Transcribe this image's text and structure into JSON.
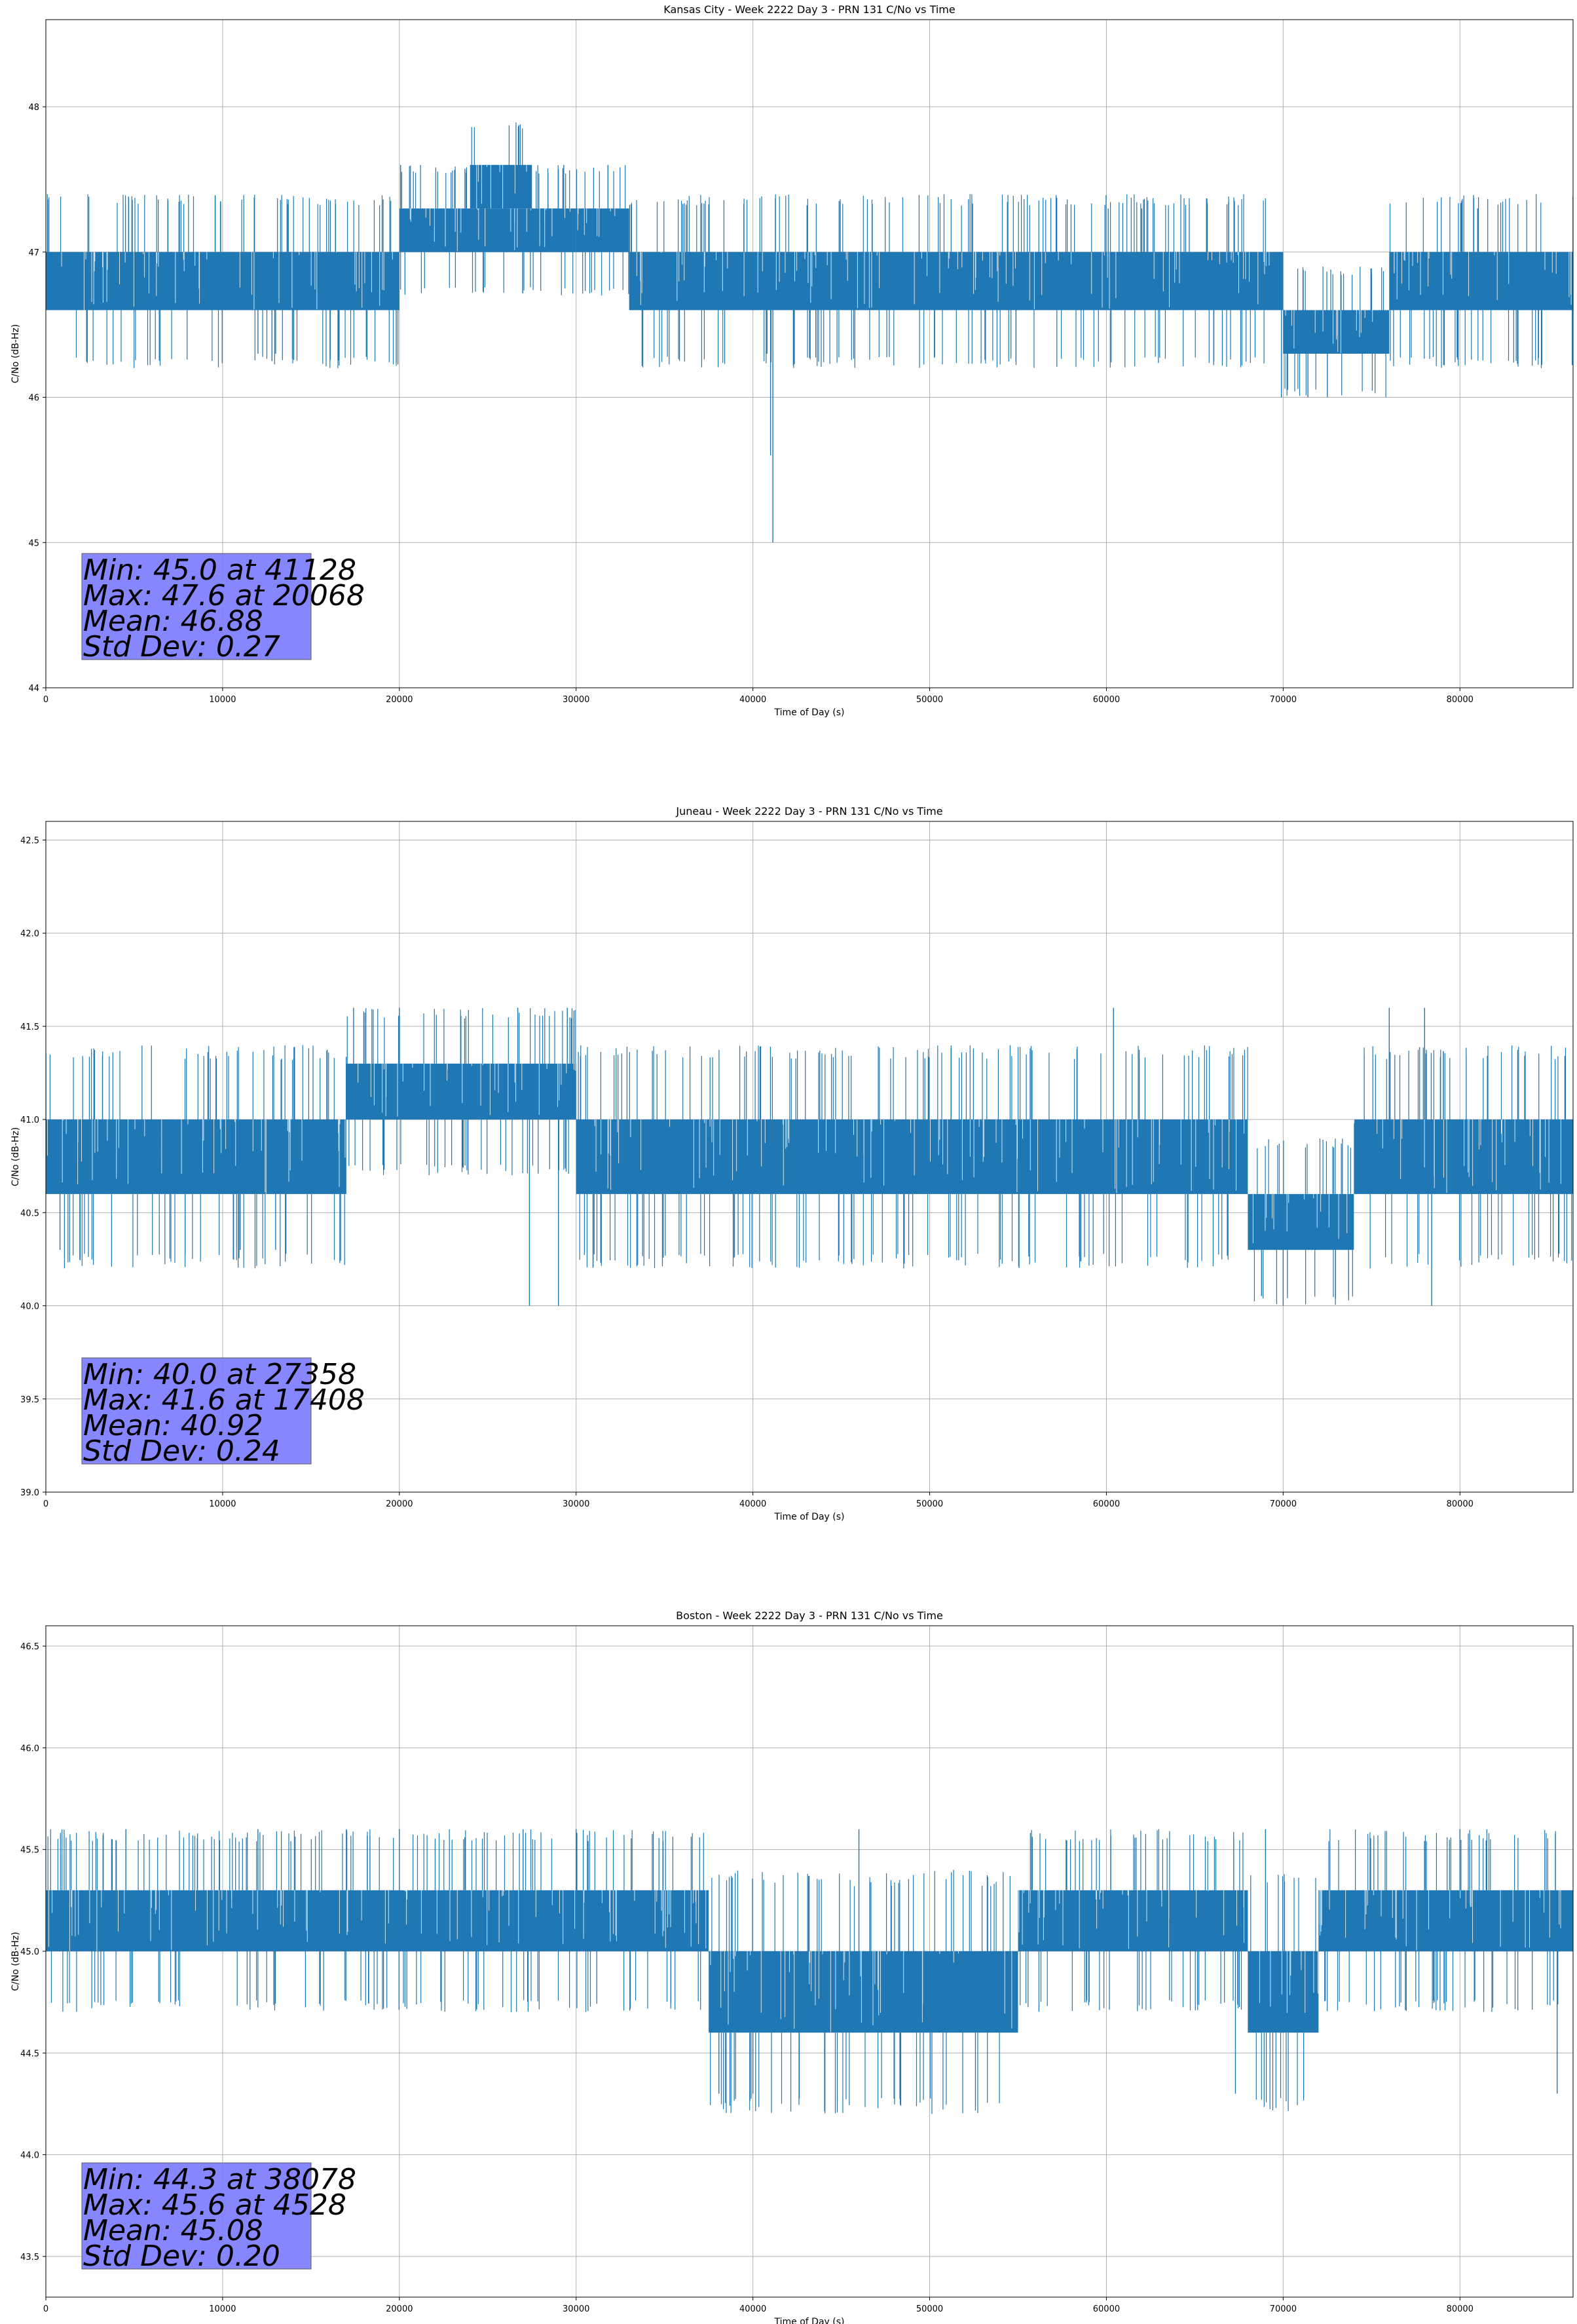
{
  "figure": {
    "background": "#ffffff",
    "line_color": "#1f77b4",
    "box_color": "#8080ff"
  },
  "chart_data": [
    {
      "type": "line",
      "title": "Kansas City - Week 2222 Day 3 - PRN 131 C/No vs Time",
      "xlabel": "Time of Day (s)",
      "ylabel": "C/No (dB-Hz)",
      "xlim": [
        0,
        86400
      ],
      "ylim": [
        44,
        48.6
      ],
      "xticks": [
        0,
        10000,
        20000,
        30000,
        40000,
        50000,
        60000,
        70000,
        80000
      ],
      "yticks": [
        44,
        45,
        46,
        47,
        48
      ],
      "grid": true,
      "series": [
        {
          "band": [
            {
              "x": [
                0,
                20000
              ],
              "y": [
                46.6,
                47.0
              ]
            },
            {
              "x": [
                20000,
                30000
              ],
              "y": [
                47.0,
                47.3
              ]
            },
            {
              "x": [
                24000,
                27500
              ],
              "y": [
                47.3,
                47.6
              ]
            },
            {
              "x": [
                30000,
                33000
              ],
              "y": [
                47.0,
                47.3
              ]
            },
            {
              "x": [
                33000,
                70000
              ],
              "y": [
                46.6,
                47.0
              ]
            },
            {
              "x": [
                70000,
                76000
              ],
              "y": [
                46.3,
                46.6
              ]
            },
            {
              "x": [
                76000,
                86400
              ],
              "y": [
                46.6,
                47.0
              ]
            }
          ],
          "spikes": [
            {
              "x": 41128,
              "y": 45.0
            },
            {
              "x": 41000,
              "y": 45.6
            },
            {
              "x": 40800,
              "y": 46.3
            },
            {
              "x": 20068,
              "y": 47.6
            },
            {
              "x": 69900,
              "y": 46.0
            },
            {
              "x": 71400,
              "y": 46.0
            },
            {
              "x": 72500,
              "y": 46.0
            },
            {
              "x": 13000,
              "y": 46.3
            },
            {
              "x": 12000,
              "y": 46.3
            },
            {
              "x": 31800,
              "y": 47.6
            },
            {
              "x": 29300,
              "y": 47.6
            },
            {
              "x": 60100,
              "y": 47.3
            },
            {
              "x": 62000,
              "y": 47.3
            },
            {
              "x": 81000,
              "y": 47.3
            }
          ]
        }
      ],
      "stats": {
        "line1": "Min: 45.0 at 41128",
        "line2": "Max: 47.6 at 20068",
        "line3": "Mean: 46.88",
        "line4": "Std Dev: 0.27"
      }
    },
    {
      "type": "line",
      "title": "Juneau - Week 2222 Day 3 - PRN 131 C/No vs Time",
      "xlabel": "Time of Day (s)",
      "ylabel": "C/No (dB-Hz)",
      "xlim": [
        0,
        86400
      ],
      "ylim": [
        39.0,
        42.6
      ],
      "xticks": [
        0,
        10000,
        20000,
        30000,
        40000,
        50000,
        60000,
        70000,
        80000
      ],
      "yticks": [
        39.0,
        39.5,
        40.0,
        40.5,
        41.0,
        41.5,
        42.0,
        42.5
      ],
      "grid": true,
      "series": [
        {
          "band": [
            {
              "x": [
                0,
                17000
              ],
              "y": [
                40.6,
                41.0
              ]
            },
            {
              "x": [
                17000,
                30000
              ],
              "y": [
                41.0,
                41.3
              ]
            },
            {
              "x": [
                30000,
                68000
              ],
              "y": [
                40.6,
                41.0
              ]
            },
            {
              "x": [
                68000,
                74000
              ],
              "y": [
                40.3,
                40.6
              ]
            },
            {
              "x": [
                74000,
                86400
              ],
              "y": [
                40.6,
                41.0
              ]
            }
          ],
          "spikes": [
            {
              "x": 27358,
              "y": 40.0
            },
            {
              "x": 29000,
              "y": 40.0
            },
            {
              "x": 70000,
              "y": 40.0
            },
            {
              "x": 78400,
              "y": 40.0
            },
            {
              "x": 17408,
              "y": 41.6
            },
            {
              "x": 20000,
              "y": 41.6
            },
            {
              "x": 26700,
              "y": 41.6
            },
            {
              "x": 29500,
              "y": 41.6
            },
            {
              "x": 60400,
              "y": 41.6
            },
            {
              "x": 76000,
              "y": 41.6
            },
            {
              "x": 78000,
              "y": 41.6
            },
            {
              "x": 800,
              "y": 40.3
            },
            {
              "x": 11000,
              "y": 40.3
            },
            {
              "x": 13000,
              "y": 40.3
            }
          ]
        }
      ],
      "stats": {
        "line1": "Min: 40.0 at 27358",
        "line2": "Max: 41.6 at 17408",
        "line3": "Mean: 40.92",
        "line4": "Std Dev: 0.24"
      }
    },
    {
      "type": "line",
      "title": "Boston - Week 2222 Day 3 - PRN 131 C/No vs Time",
      "xlabel": "Time of Day (s)",
      "ylabel": "C/No (dB-Hz)",
      "xlim": [
        0,
        86400
      ],
      "ylim": [
        43.3,
        46.6
      ],
      "xticks": [
        0,
        10000,
        20000,
        30000,
        40000,
        50000,
        60000,
        70000,
        80000
      ],
      "yticks": [
        43.5,
        44.0,
        44.5,
        45.0,
        45.5,
        46.0,
        46.5
      ],
      "grid": true,
      "series": [
        {
          "band": [
            {
              "x": [
                0,
                37500
              ],
              "y": [
                45.0,
                45.3
              ]
            },
            {
              "x": [
                37500,
                55000
              ],
              "y": [
                44.6,
                45.0
              ]
            },
            {
              "x": [
                55000,
                68000
              ],
              "y": [
                45.0,
                45.3
              ]
            },
            {
              "x": [
                68000,
                72000
              ],
              "y": [
                44.6,
                45.0
              ]
            },
            {
              "x": [
                72000,
                86400
              ],
              "y": [
                45.0,
                45.3
              ]
            }
          ],
          "spikes": [
            {
              "x": 38078,
              "y": 44.3
            },
            {
              "x": 40000,
              "y": 44.3
            },
            {
              "x": 67300,
              "y": 44.3
            },
            {
              "x": 85500,
              "y": 44.3
            },
            {
              "x": 4528,
              "y": 45.6
            },
            {
              "x": 12000,
              "y": 45.6
            },
            {
              "x": 17000,
              "y": 45.6
            },
            {
              "x": 20000,
              "y": 45.6
            },
            {
              "x": 27000,
              "y": 45.6
            },
            {
              "x": 30000,
              "y": 45.6
            },
            {
              "x": 46000,
              "y": 45.6
            },
            {
              "x": 69000,
              "y": 45.6
            },
            {
              "x": 80000,
              "y": 45.6
            }
          ]
        }
      ],
      "stats": {
        "line1": "Min: 44.3 at 38078",
        "line2": "Max: 45.6 at 4528",
        "line3": "Mean: 45.08",
        "line4": "Std Dev: 0.20"
      }
    }
  ]
}
